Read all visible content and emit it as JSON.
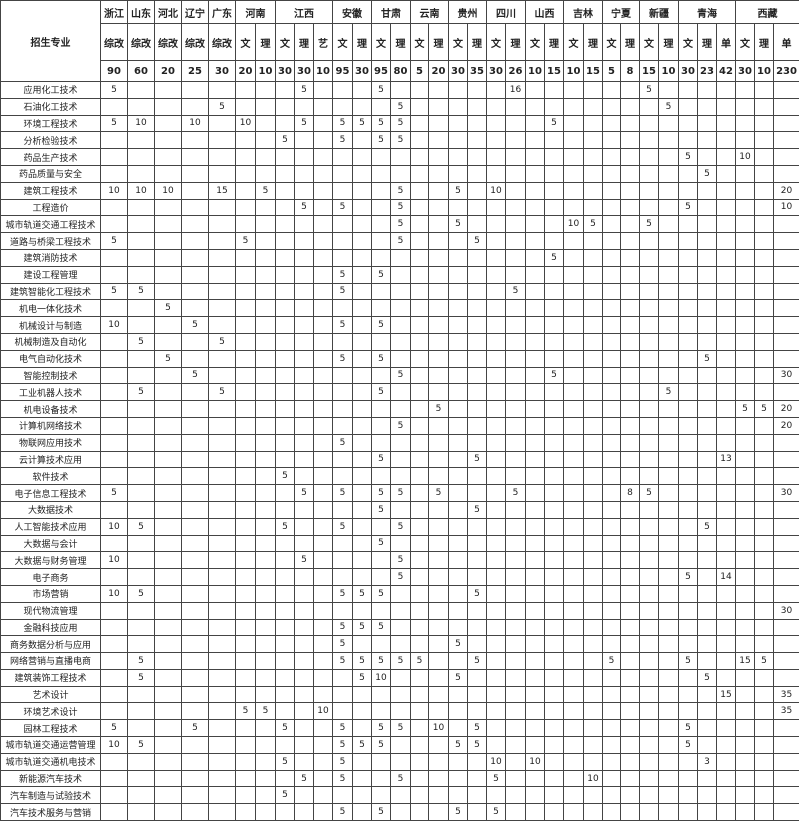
{
  "header": {
    "major_label": "招生专业",
    "provinces": [
      {
        "name": "浙江",
        "subs": [
          "综改"
        ]
      },
      {
        "name": "山东",
        "subs": [
          "综改"
        ]
      },
      {
        "name": "河北",
        "subs": [
          "综改"
        ]
      },
      {
        "name": "辽宁",
        "subs": [
          "综改"
        ]
      },
      {
        "name": "广东",
        "subs": [
          "综改"
        ]
      },
      {
        "name": "河南",
        "subs": [
          "文",
          "理"
        ]
      },
      {
        "name": "江西",
        "subs": [
          "文",
          "理",
          "艺"
        ]
      },
      {
        "name": "安徽",
        "subs": [
          "文",
          "理"
        ]
      },
      {
        "name": "甘肃",
        "subs": [
          "文",
          "理"
        ]
      },
      {
        "name": "云南",
        "subs": [
          "文",
          "理"
        ]
      },
      {
        "name": "贵州",
        "subs": [
          "文",
          "理"
        ]
      },
      {
        "name": "四川",
        "subs": [
          "文",
          "理"
        ]
      },
      {
        "name": "山西",
        "subs": [
          "文",
          "理"
        ]
      },
      {
        "name": "吉林",
        "subs": [
          "文",
          "理"
        ]
      },
      {
        "name": "宁夏",
        "subs": [
          "文",
          "理"
        ]
      },
      {
        "name": "新疆",
        "subs": [
          "文",
          "理"
        ]
      },
      {
        "name": "青海",
        "subs": [
          "文",
          "理",
          "单"
        ]
      },
      {
        "name": "西藏",
        "subs": [
          "文",
          "理",
          "单"
        ]
      }
    ],
    "totals": [
      "90",
      "60",
      "20",
      "25",
      "30",
      "20",
      "10",
      "30",
      "30",
      "10",
      "95",
      "30",
      "95",
      "80",
      "5",
      "20",
      "30",
      "35",
      "30",
      "26",
      "10",
      "15",
      "10",
      "15",
      "5",
      "8",
      "15",
      "10",
      "30",
      "23",
      "42",
      "30",
      "10",
      "230"
    ]
  },
  "rows": [
    {
      "name": "应用化工技术",
      "cells": {
        "0": "5",
        "8": "5",
        "12": "5",
        "19": "16",
        "26": "5"
      }
    },
    {
      "name": "石油化工技术",
      "cells": {
        "4": "5",
        "13": "5",
        "27": "5"
      }
    },
    {
      "name": "环境工程技术",
      "cells": {
        "0": "5",
        "1": "10",
        "3": "10",
        "5": "10",
        "8": "5",
        "10": "5",
        "11": "5",
        "12": "5",
        "13": "5",
        "21": "5"
      }
    },
    {
      "name": "分析检验技术",
      "cells": {
        "7": "5",
        "10": "5",
        "12": "5",
        "13": "5"
      }
    },
    {
      "name": "药品生产技术",
      "cells": {
        "28": "5",
        "31": "10"
      }
    },
    {
      "name": "药品质量与安全",
      "cells": {
        "29": "5"
      }
    },
    {
      "name": "建筑工程技术",
      "cells": {
        "0": "10",
        "1": "10",
        "2": "10",
        "4": "15",
        "6": "5",
        "13": "5",
        "16": "5",
        "18": "10",
        "33": "20"
      }
    },
    {
      "name": "工程造价",
      "cells": {
        "8": "5",
        "10": "5",
        "13": "5",
        "28": "5",
        "33": "10"
      }
    },
    {
      "name": "城市轨道交通工程技术",
      "cells": {
        "13": "5",
        "16": "5",
        "22": "10",
        "23": "5",
        "26": "5"
      }
    },
    {
      "name": "道路与桥梁工程技术",
      "cells": {
        "0": "5",
        "5": "5",
        "13": "5",
        "17": "5"
      }
    },
    {
      "name": "建筑消防技术",
      "cells": {
        "21": "5"
      }
    },
    {
      "name": "建设工程管理",
      "cells": {
        "10": "5",
        "12": "5"
      }
    },
    {
      "name": "建筑智能化工程技术",
      "cells": {
        "0": "5",
        "1": "5",
        "10": "5",
        "19": "5"
      }
    },
    {
      "name": "机电一体化技术",
      "cells": {
        "2": "5"
      }
    },
    {
      "name": "机械设计与制造",
      "cells": {
        "0": "10",
        "3": "5",
        "10": "5",
        "12": "5"
      }
    },
    {
      "name": "机械制造及自动化",
      "cells": {
        "1": "5",
        "4": "5"
      }
    },
    {
      "name": "电气自动化技术",
      "cells": {
        "2": "5",
        "10": "5",
        "12": "5",
        "29": "5"
      }
    },
    {
      "name": "智能控制技术",
      "cells": {
        "3": "5",
        "13": "5",
        "21": "5",
        "33": "30"
      }
    },
    {
      "name": "工业机器人技术",
      "cells": {
        "1": "5",
        "4": "5",
        "12": "5",
        "27": "5"
      }
    },
    {
      "name": "机电设备技术",
      "cells": {
        "15": "5",
        "31": "5",
        "32": "5",
        "33": "20"
      }
    },
    {
      "name": "计算机网络技术",
      "cells": {
        "13": "5",
        "33": "20"
      }
    },
    {
      "name": "物联网应用技术",
      "cells": {
        "10": "5"
      }
    },
    {
      "name": "云计算技术应用",
      "cells": {
        "12": "5",
        "17": "5",
        "30": "13"
      }
    },
    {
      "name": "软件技术",
      "cells": {
        "7": "5"
      }
    },
    {
      "name": "电子信息工程技术",
      "cells": {
        "0": "5",
        "8": "5",
        "10": "5",
        "12": "5",
        "13": "5",
        "15": "5",
        "19": "5",
        "25": "8",
        "26": "5",
        "33": "30"
      }
    },
    {
      "name": "大数据技术",
      "cells": {
        "12": "5",
        "17": "5"
      }
    },
    {
      "name": "人工智能技术应用",
      "cells": {
        "0": "10",
        "1": "5",
        "7": "5",
        "10": "5",
        "13": "5",
        "29": "5"
      }
    },
    {
      "name": "大数据与会计",
      "cells": {
        "12": "5"
      }
    },
    {
      "name": "大数据与财务管理",
      "cells": {
        "0": "10",
        "8": "5",
        "13": "5"
      }
    },
    {
      "name": "电子商务",
      "cells": {
        "13": "5",
        "28": "5",
        "30": "14"
      }
    },
    {
      "name": "市场营销",
      "cells": {
        "0": "10",
        "1": "5",
        "10": "5",
        "11": "5",
        "12": "5",
        "17": "5"
      }
    },
    {
      "name": "现代物流管理",
      "cells": {
        "33": "30"
      }
    },
    {
      "name": "金融科技应用",
      "cells": {
        "10": "5",
        "11": "5",
        "12": "5"
      }
    },
    {
      "name": "商务数据分析与应用",
      "cells": {
        "10": "5",
        "16": "5"
      }
    },
    {
      "name": "网络营销与直播电商",
      "cells": {
        "1": "5",
        "10": "5",
        "11": "5",
        "12": "5",
        "13": "5",
        "14": "5",
        "17": "5",
        "24": "5",
        "28": "5",
        "31": "15",
        "32": "5"
      }
    },
    {
      "name": "建筑装饰工程技术",
      "cells": {
        "1": "5",
        "11": "5",
        "12": "10",
        "16": "5",
        "29": "5"
      }
    },
    {
      "name": "艺术设计",
      "cells": {
        "30": "15",
        "33": "35"
      }
    },
    {
      "name": "环境艺术设计",
      "cells": {
        "5": "5",
        "6": "5",
        "9": "10",
        "33": "35"
      }
    },
    {
      "name": "园林工程技术",
      "cells": {
        "0": "5",
        "3": "5",
        "7": "5",
        "10": "5",
        "12": "5",
        "13": "5",
        "15": "10",
        "17": "5",
        "28": "5"
      }
    },
    {
      "name": "城市轨道交通运营管理",
      "cells": {
        "0": "10",
        "1": "5",
        "10": "5",
        "11": "5",
        "12": "5",
        "16": "5",
        "17": "5",
        "28": "5"
      }
    },
    {
      "name": "城市轨道交通机电技术",
      "cells": {
        "7": "5",
        "10": "5",
        "18": "10",
        "20": "10",
        "29": "3"
      }
    },
    {
      "name": "新能源汽车技术",
      "cells": {
        "8": "5",
        "10": "5",
        "13": "5",
        "18": "5",
        "23": "10"
      }
    },
    {
      "name": "汽车制造与试验技术",
      "cells": {
        "7": "5"
      }
    },
    {
      "name": "汽车技术服务与营销",
      "cells": {
        "10": "5",
        "12": "5",
        "16": "5",
        "18": "5"
      }
    }
  ]
}
